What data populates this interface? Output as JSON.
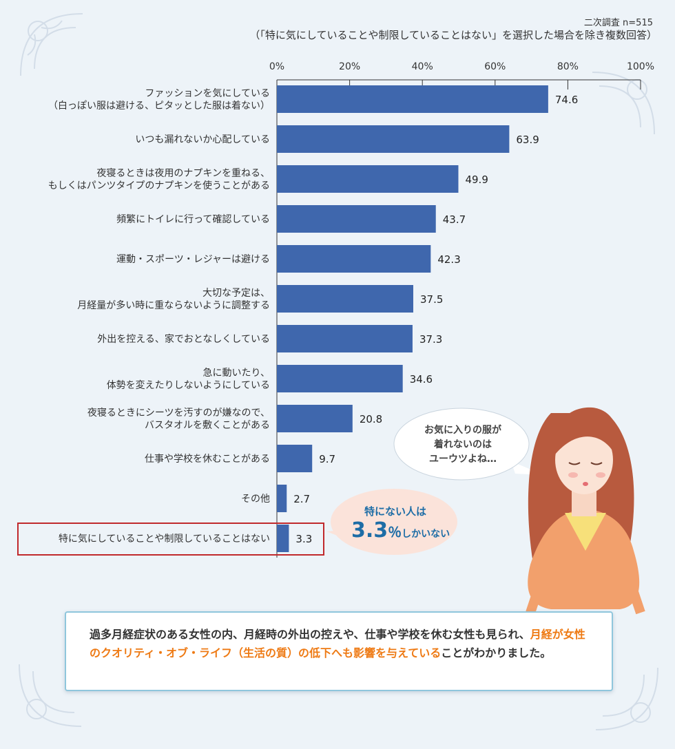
{
  "header": {
    "survey_note": "二次調査 n=515",
    "condition": "（「特に気にしていることや制限していることはない」を選択した場合を除き複数回答）"
  },
  "chart_data": {
    "type": "bar",
    "orientation": "horizontal",
    "xlim": [
      0,
      100
    ],
    "x_ticks": [
      "0%",
      "20%",
      "40%",
      "60%",
      "80%",
      "100%"
    ],
    "grid": false,
    "categories": [
      [
        "ファッションを気にしている",
        "（白っぽい服は避ける、ピタッとした服は着ない）"
      ],
      [
        "いつも漏れないか心配している"
      ],
      [
        "夜寝るときは夜用のナプキンを重ねる、",
        "もしくはパンツタイプのナプキンを使うことがある"
      ],
      [
        "頻繁にトイレに行って確認している"
      ],
      [
        "運動・スポーツ・レジャーは避ける"
      ],
      [
        "大切な予定は、",
        "月経量が多い時に重ならないように調整する"
      ],
      [
        "外出を控える、家でおとなしくしている"
      ],
      [
        "急に動いたり、",
        "体勢を変えたりしないようにしている"
      ],
      [
        "夜寝るときにシーツを汚すのが嫌なので、",
        "バスタオルを敷くことがある"
      ],
      [
        "仕事や学校を休むことがある"
      ],
      [
        "その他"
      ],
      [
        "特に気にしていることや制限していることはない"
      ]
    ],
    "values": [
      74.6,
      63.9,
      49.9,
      43.7,
      42.3,
      37.5,
      37.3,
      34.6,
      20.8,
      9.7,
      2.7,
      3.3
    ],
    "value_labels": [
      "74.6",
      "63.9",
      "49.9",
      "43.7",
      "42.3",
      "37.5",
      "37.3",
      "34.6",
      "20.8",
      "9.7",
      "2.7",
      "3.3"
    ],
    "highlighted_category": "特に気にしていることや制限していることはない",
    "bar_color": "#3f67ad",
    "highlight_border_color": "#c0282b"
  },
  "callout": {
    "line1": "特にない人は",
    "value": "3.3",
    "unit": "％",
    "suffix": "しかいない"
  },
  "speech": {
    "lines": [
      "お気に入りの服が",
      "着れないのは",
      "ユーウツよね…"
    ]
  },
  "summary": {
    "part1": "過多月経症状のある女性の内、月経時の外出の控えや、仕事や学校を休む女性も見られ、",
    "highlight": "月経が女性のクオリティ・オブ・ライフ（生活の質）の低下へも影響を与えている",
    "part2": "ことがわかりました。"
  },
  "colors": {
    "background": "#edf3f8",
    "accent_orange": "#ee7a14",
    "callout_text": "#1d6da6",
    "callout_bg": "#fbe3da"
  }
}
